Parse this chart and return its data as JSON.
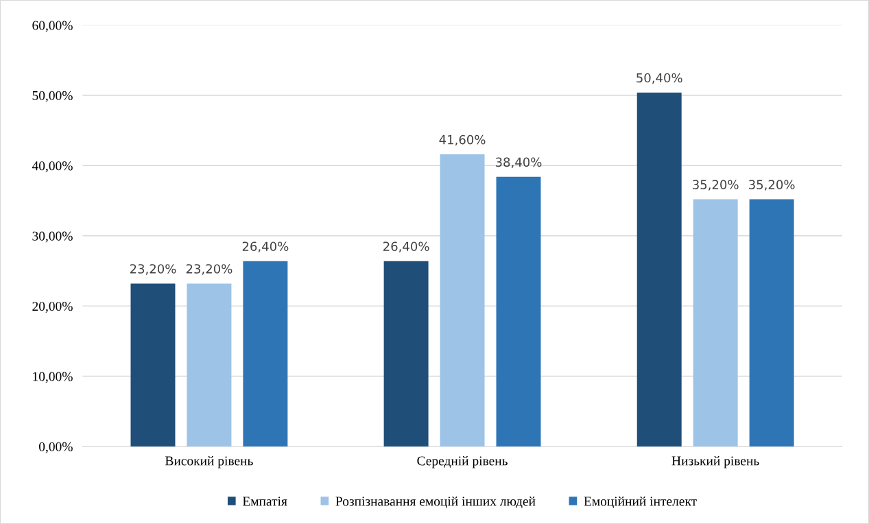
{
  "chart_data": {
    "type": "bar",
    "categories": [
      "Високий рівень",
      "Середній рівень",
      "Низький рівень"
    ],
    "series": [
      {
        "name": "Емпатія",
        "color": "#1f4e79",
        "values": [
          23.2,
          26.4,
          50.4
        ],
        "value_labels": [
          "23,20%",
          "26,40%",
          "50,40%"
        ]
      },
      {
        "name": "Розпізнавання емоцій інших людей",
        "color": "#9dc3e6",
        "values": [
          23.2,
          41.6,
          35.2
        ],
        "value_labels": [
          "23,20%",
          "41,60%",
          "35,20%"
        ]
      },
      {
        "name": "Емоційний інтелект",
        "color": "#2e75b6",
        "values": [
          26.4,
          38.4,
          35.2
        ],
        "value_labels": [
          "26,40%",
          "38,40%",
          "35,20%"
        ]
      }
    ],
    "ylim": [
      0,
      60
    ],
    "yticks": [
      {
        "value": 0,
        "label": "0,00%"
      },
      {
        "value": 10,
        "label": "10,00%"
      },
      {
        "value": 20,
        "label": "20,00%"
      },
      {
        "value": 30,
        "label": "30,00%"
      },
      {
        "value": 40,
        "label": "40,00%"
      },
      {
        "value": 50,
        "label": "50,00%"
      },
      {
        "value": 60,
        "label": "60,00%"
      }
    ],
    "grid": "y",
    "legend": "bottom"
  }
}
